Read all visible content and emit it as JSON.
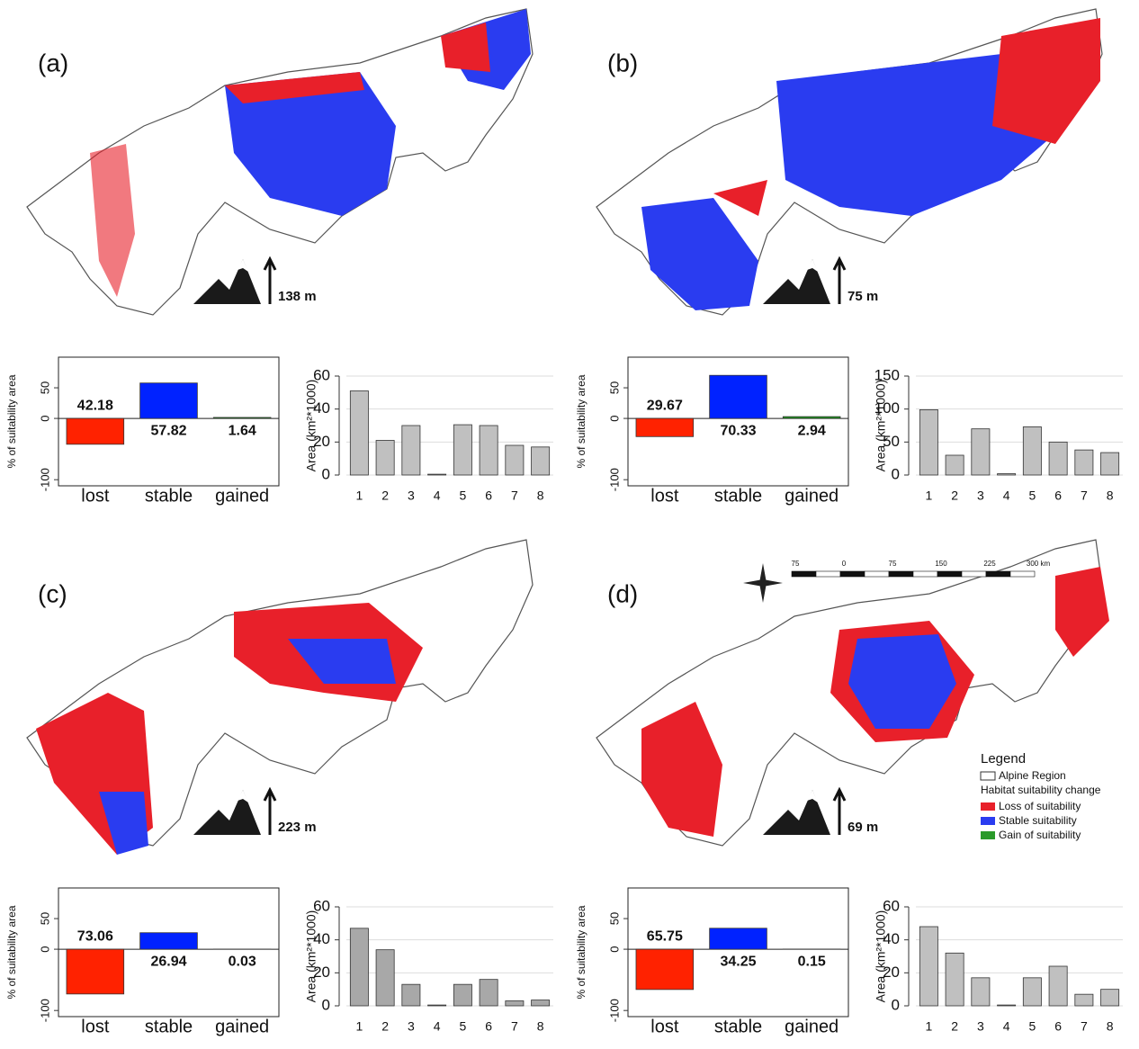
{
  "panels": [
    {
      "label": "(a)",
      "elevation": "138 m"
    },
    {
      "label": "(b)",
      "elevation": "75 m"
    },
    {
      "label": "(c)",
      "elevation": "223 m"
    },
    {
      "label": "(d)",
      "elevation": "69 m"
    }
  ],
  "legend": {
    "title": "Legend",
    "region": "Alpine Region",
    "subtitle": "Habitat suitability change",
    "items": [
      {
        "name": "Loss of suitability",
        "color": "#e8202a"
      },
      {
        "name": "Stable suitability",
        "color": "#2a3cf0"
      },
      {
        "name": "Gain of suitability",
        "color": "#2a9a2a"
      }
    ]
  },
  "scale_bar": [
    "75",
    "0",
    "75",
    "150",
    "225",
    "300 km"
  ],
  "chart_data": [
    {
      "type": "bar",
      "y_label": "% of suitability area",
      "categories": [
        "lost",
        "stable",
        "gained"
      ],
      "values": [
        -42.18,
        57.82,
        1.64
      ],
      "value_labels": [
        "42.18",
        "57.82",
        "1.64"
      ],
      "colors": [
        "#ff2200",
        "#0022ff",
        "#1a9a1a"
      ],
      "ylim": [
        -110,
        100
      ],
      "yticks": [
        -100,
        0,
        50
      ]
    },
    {
      "type": "bar",
      "y_label": "Area (km²*1000)",
      "categories": [
        "1",
        "2",
        "3",
        "4",
        "5",
        "6",
        "7",
        "8"
      ],
      "values": [
        51,
        21,
        30,
        0.5,
        30.5,
        30,
        18,
        17
      ],
      "color": "#c0c0c0",
      "ylim": [
        0,
        60
      ],
      "yticks": [
        0,
        20,
        40,
        60
      ],
      "grid": true
    },
    {
      "type": "bar",
      "y_label": "% of suitability area",
      "categories": [
        "lost",
        "stable",
        "gained"
      ],
      "values": [
        -29.67,
        70.33,
        2.94
      ],
      "value_labels": [
        "29.67",
        "70.33",
        "2.94"
      ],
      "colors": [
        "#ff2200",
        "#0022ff",
        "#1a9a1a"
      ],
      "ylim": [
        -110,
        100
      ],
      "yticks": [
        -100,
        0,
        50
      ]
    },
    {
      "type": "bar",
      "y_label": "Area (km²*1000)",
      "categories": [
        "1",
        "2",
        "3",
        "4",
        "5",
        "6",
        "7",
        "8"
      ],
      "values": [
        99,
        30,
        70,
        2,
        73,
        50,
        38,
        34
      ],
      "color": "#c0c0c0",
      "ylim": [
        0,
        150
      ],
      "yticks": [
        0,
        50,
        100,
        150
      ],
      "grid": true
    },
    {
      "type": "bar",
      "y_label": "% of suitability area",
      "categories": [
        "lost",
        "stable",
        "gained"
      ],
      "values": [
        -73.06,
        26.94,
        0.03
      ],
      "value_labels": [
        "73.06",
        "26.94",
        "0.03"
      ],
      "colors": [
        "#ff2200",
        "#0022ff",
        "#1a9a1a"
      ],
      "ylim": [
        -110,
        100
      ],
      "yticks": [
        -100,
        0,
        50
      ]
    },
    {
      "type": "bar",
      "y_label": "Area (km²*1000)",
      "categories": [
        "1",
        "2",
        "3",
        "4",
        "5",
        "6",
        "7",
        "8"
      ],
      "values": [
        47,
        34,
        13,
        0.5,
        13,
        16,
        3,
        3.5
      ],
      "color": "#a8a8a8",
      "ylim": [
        0,
        60
      ],
      "yticks": [
        0,
        20,
        40,
        60
      ],
      "grid": true
    },
    {
      "type": "bar",
      "y_label": "% of suitability area",
      "categories": [
        "lost",
        "stable",
        "gained"
      ],
      "values": [
        -65.75,
        34.25,
        0.15
      ],
      "value_labels": [
        "65.75",
        "34.25",
        "0.15"
      ],
      "colors": [
        "#ff2200",
        "#0022ff",
        "#1a9a1a"
      ],
      "ylim": [
        -110,
        100
      ],
      "yticks": [
        -100,
        0,
        50
      ]
    },
    {
      "type": "bar",
      "y_label": "Area (km²*1000)",
      "categories": [
        "1",
        "2",
        "3",
        "4",
        "5",
        "6",
        "7",
        "8"
      ],
      "values": [
        48,
        32,
        17,
        0.5,
        17,
        24,
        7,
        10
      ],
      "color": "#c0c0c0",
      "ylim": [
        0,
        60
      ],
      "yticks": [
        0,
        20,
        40,
        60
      ],
      "grid": true
    }
  ]
}
